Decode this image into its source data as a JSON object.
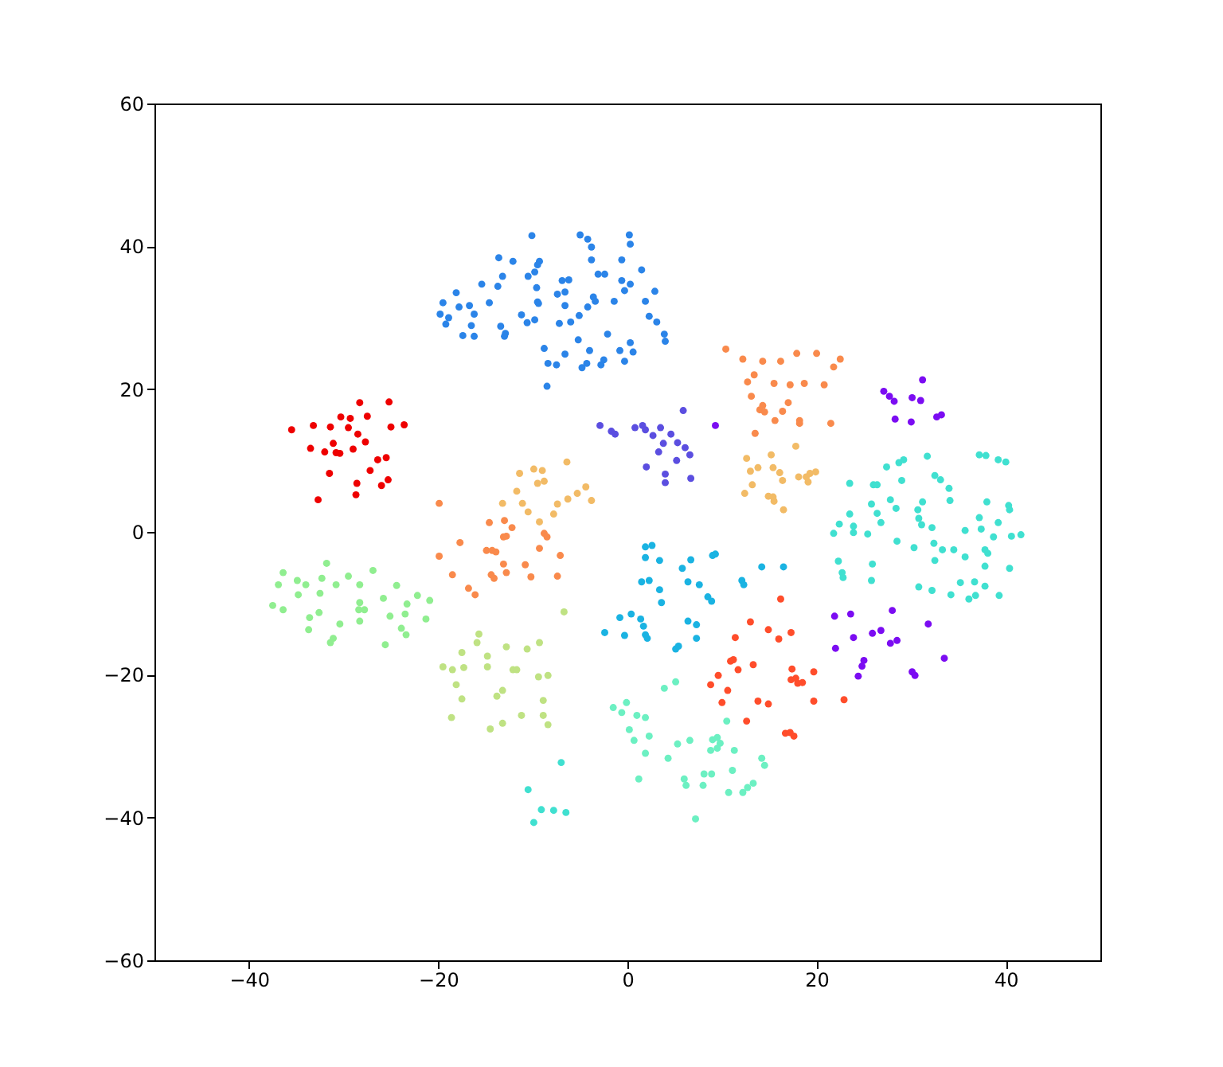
{
  "chart_data": {
    "type": "scatter",
    "marker": "circle",
    "xlim": [
      -50,
      50
    ],
    "ylim": [
      -60,
      60
    ],
    "xticks": [
      -40,
      -20,
      0,
      20,
      40
    ],
    "yticks": [
      -60,
      -40,
      -20,
      0,
      20,
      40,
      60
    ],
    "series": [
      {
        "color": "#ee0000",
        "x": [
          -28.3,
          -25.2,
          -30.3,
          -29.3,
          -27.5,
          -35.5,
          -33.2,
          -31.4,
          -29.5,
          -25.0,
          -23.6,
          -28.5,
          -31.1,
          -27.7,
          -33.5,
          -32.0,
          -30.8,
          -30.4,
          -29.0,
          -26.4,
          -25.5,
          -31.5,
          -27.2,
          -28.6,
          -26.0,
          -25.3,
          -28.7,
          -32.7
        ],
        "values": [
          18.1,
          18.2,
          16.1,
          15.9,
          16.2,
          14.3,
          14.9,
          14.7,
          14.6,
          14.7,
          15.0,
          13.7,
          12.4,
          12.6,
          11.7,
          11.2,
          11.1,
          11.0,
          11.6,
          10.1,
          10.4,
          8.2,
          8.6,
          6.8,
          6.5,
          7.3,
          5.2,
          4.5
        ]
      },
      {
        "color": "#2b84e8",
        "x": [
          -10.1,
          -13.6,
          -12.1,
          -13.2,
          -10.5,
          -15.4,
          -13.7,
          -18.1,
          -14.6,
          -19.5,
          -17.8,
          -16.7,
          -19.8,
          -18.9,
          -16.2,
          -11.2,
          -10.6,
          -19.2,
          -16.5,
          -13.4,
          -17.4,
          -16.2,
          -12.9,
          -13.0,
          -5.0,
          -4.2,
          -3.8,
          0.2,
          0.3,
          -9.3,
          -9.5,
          -3.8,
          -0.6,
          -9.8,
          -3.1,
          -2.4,
          1.5,
          -6.9,
          -6.2,
          -7.4,
          -6.6,
          -0.6,
          0.3,
          -9.6,
          -0.3,
          2.9,
          -3.6,
          -3.4,
          -9.5,
          -9.4,
          -6.6,
          -4.2,
          -1.4,
          1.9,
          -9.8,
          -7.2,
          -6.0,
          -5.1,
          2.3,
          3.1,
          -2.1,
          -5.2,
          3.9,
          4.0,
          0.3,
          -8.8,
          -6.6,
          -4.0,
          -0.8,
          0.6,
          -8.4,
          -7.5,
          -4.8,
          -4.3,
          -2.8,
          -2.5,
          -0.3,
          -8.5
        ],
        "values": [
          41.5,
          38.4,
          37.9,
          35.8,
          35.8,
          34.7,
          34.4,
          33.5,
          32.1,
          32.1,
          31.5,
          31.7,
          30.5,
          30.0,
          30.5,
          30.4,
          29.3,
          29.1,
          28.9,
          28.8,
          27.5,
          27.4,
          27.8,
          27.4,
          41.6,
          41.0,
          39.9,
          41.6,
          40.3,
          37.9,
          37.4,
          38.1,
          38.1,
          36.4,
          36.1,
          36.1,
          36.7,
          35.2,
          35.3,
          33.3,
          33.6,
          35.2,
          34.7,
          34.2,
          33.8,
          33.7,
          32.9,
          32.3,
          32.2,
          32.0,
          31.7,
          31.5,
          32.3,
          32.3,
          29.7,
          29.2,
          29.4,
          30.3,
          30.2,
          29.4,
          27.7,
          26.9,
          27.7,
          26.7,
          26.5,
          25.7,
          24.9,
          25.4,
          25.4,
          25.2,
          23.6,
          23.4,
          23.0,
          23.6,
          23.4,
          24.1,
          23.9,
          20.4
        ]
      },
      {
        "color": "#5b4ee0",
        "x": [
          5.9,
          -2.9,
          -1.7,
          -1.3,
          0.8,
          1.6,
          1.9,
          3.5,
          2.7,
          4.6,
          3.8,
          5.3,
          6.1,
          3.3,
          6.6,
          5.2,
          2.0,
          4.0,
          4.0,
          6.7
        ],
        "values": [
          17.0,
          14.9,
          14.1,
          13.7,
          14.6,
          14.9,
          14.3,
          14.6,
          13.5,
          13.7,
          12.4,
          12.5,
          11.8,
          11.2,
          10.8,
          10.0,
          9.1,
          8.1,
          6.9,
          7.5
        ]
      },
      {
        "color": "#7b0cf2",
        "x": [
          31.2,
          27.1,
          27.7,
          28.2,
          30.1,
          31.0,
          28.3,
          30.0,
          32.7,
          33.2,
          9.3,
          21.9,
          23.6,
          28.0,
          31.8,
          23.9,
          25.9,
          26.8,
          27.8,
          28.5,
          22.0,
          25.0,
          24.8,
          24.4,
          30.1,
          30.4,
          33.5
        ],
        "values": [
          21.3,
          19.7,
          19.0,
          18.3,
          18.8,
          18.4,
          15.8,
          15.4,
          16.1,
          16.4,
          14.9,
          -11.8,
          -11.5,
          -11.0,
          -12.9,
          -14.8,
          -14.2,
          -13.8,
          -15.6,
          -15.2,
          -16.3,
          -18.0,
          -18.8,
          -20.2,
          -19.6,
          -20.1,
          -17.7
        ]
      },
      {
        "color": "#f98a4c",
        "x": [
          10.4,
          12.2,
          14.3,
          13.4,
          12.7,
          13.1,
          14.3,
          14.0,
          14.5,
          13.5,
          16.2,
          17.9,
          20.0,
          21.8,
          22.5,
          15.5,
          17.2,
          18.7,
          20.8,
          17.0,
          16.4,
          15.6,
          18.2,
          18.2,
          21.5,
          -19.9,
          -14.6,
          -13.0,
          -12.2,
          -19.9,
          -17.7,
          -14.9,
          -14.3,
          -13.9,
          -13.1,
          -12.8,
          -10.8,
          -18.5,
          -14.4,
          -14.1,
          -13.1,
          -12.8,
          -10.2,
          -16.8,
          -16.1,
          -8.8,
          -8.5,
          -9.3,
          -7.1,
          -7.4
        ],
        "values": [
          25.6,
          24.2,
          23.9,
          22.0,
          21.0,
          19.0,
          17.7,
          17.1,
          16.8,
          13.8,
          23.9,
          25.0,
          25.0,
          23.1,
          24.2,
          20.8,
          20.6,
          20.8,
          20.6,
          18.1,
          16.9,
          15.6,
          15.6,
          15.2,
          15.2,
          4.0,
          1.3,
          1.6,
          0.6,
          -3.4,
          -1.5,
          -2.6,
          -2.6,
          -2.8,
          -0.7,
          -0.6,
          -4.6,
          -6.0,
          -6.0,
          -6.5,
          -4.5,
          -5.7,
          -6.3,
          -7.9,
          -8.8,
          -0.2,
          -0.7,
          -2.3,
          -3.3,
          -6.2
        ]
      },
      {
        "color": "#f2bb66",
        "x": [
          15.2,
          17.8,
          15.4,
          16.1,
          16.4,
          18.1,
          18.9,
          19.3,
          19.9,
          19.1,
          14.9,
          15.4,
          15.5,
          16.5,
          12.6,
          13.0,
          13.8,
          13.2,
          12.4,
          -11.4,
          -9.9,
          -9.0,
          -9.5,
          -8.8,
          -6.4,
          -4.4,
          -3.8,
          -5.3,
          -6.3,
          -7.4,
          -7.8,
          -11.1,
          -10.5,
          -9.3,
          -13.2,
          -11.7
        ],
        "values": [
          10.8,
          12.0,
          9.0,
          8.3,
          7.2,
          7.7,
          7.7,
          8.2,
          8.4,
          7.0,
          5.0,
          4.9,
          4.3,
          3.1,
          10.3,
          8.5,
          9.0,
          6.6,
          5.4,
          8.2,
          8.8,
          8.6,
          6.8,
          7.1,
          9.8,
          6.3,
          4.4,
          5.4,
          4.6,
          3.9,
          2.5,
          4.0,
          2.8,
          1.4,
          4.0,
          5.7
        ]
      },
      {
        "color": "#90ee90",
        "x": [
          -36.4,
          -31.8,
          -26.9,
          -36.9,
          -34.9,
          -34.0,
          -32.3,
          -30.8,
          -29.5,
          -28.3,
          -34.8,
          -32.5,
          -24.4,
          -37.5,
          -36.4,
          -28.3,
          -28.4,
          -27.8,
          -25.8,
          -23.3,
          -22.2,
          -20.9,
          -32.6,
          -33.6,
          -28.3,
          -25.1,
          -23.5,
          -21.3,
          -30.4,
          -33.7,
          -23.9,
          -23.4,
          -31.1,
          -31.4,
          -25.6
        ],
        "values": [
          -5.7,
          -4.4,
          -5.4,
          -7.4,
          -6.8,
          -7.4,
          -6.5,
          -7.4,
          -6.2,
          -7.4,
          -8.8,
          -8.6,
          -7.5,
          -10.3,
          -10.9,
          -9.9,
          -10.9,
          -10.9,
          -9.3,
          -10.1,
          -8.9,
          -9.6,
          -11.3,
          -12.0,
          -12.5,
          -11.8,
          -11.5,
          -12.2,
          -12.9,
          -13.7,
          -13.5,
          -14.4,
          -14.9,
          -15.5,
          -15.8
        ]
      },
      {
        "color": "#bfe283",
        "x": [
          -15.7,
          -15.9,
          -17.5,
          -19.5,
          -18.5,
          -17.3,
          -14.8,
          -14.8,
          -12.8,
          -10.6,
          -12.1,
          -11.7,
          -18.1,
          -17.5,
          -13.2,
          -13.8,
          -11.2,
          -18.6,
          -13.2,
          -14.5,
          -6.7,
          -9.3,
          -9.4,
          -8.4,
          -8.9,
          -8.9,
          -8.4
        ],
        "values": [
          -14.3,
          -15.5,
          -16.9,
          -18.9,
          -19.3,
          -19.0,
          -17.4,
          -18.9,
          -16.1,
          -16.4,
          -19.3,
          -19.3,
          -21.4,
          -23.4,
          -22.2,
          -23.0,
          -25.7,
          -26.0,
          -26.8,
          -27.6,
          -11.2,
          -15.5,
          -20.3,
          -20.1,
          -23.6,
          -25.7,
          -27.0
        ]
      },
      {
        "color": "#1ab3e2",
        "x": [
          1.9,
          2.6,
          1.9,
          3.4,
          5.8,
          6.7,
          9.0,
          9.3,
          1.5,
          2.3,
          6.4,
          3.4,
          7.6,
          3.6,
          8.5,
          8.9,
          12.1,
          12.3,
          14.2,
          -0.8,
          0.4,
          1.4,
          1.7,
          -2.4,
          -0.3,
          1.9,
          2.1,
          6.4,
          7.3,
          7.3,
          5.1,
          5.4,
          16.5
        ],
        "values": [
          -2.1,
          -1.9,
          -3.6,
          -4.0,
          -5.1,
          -3.9,
          -3.3,
          -3.1,
          -7.0,
          -6.8,
          -7.0,
          -8.1,
          -7.4,
          -9.9,
          -9.1,
          -9.7,
          -6.8,
          -7.4,
          -4.9,
          -12.0,
          -11.5,
          -12.2,
          -13.2,
          -14.1,
          -14.5,
          -14.4,
          -14.9,
          -12.5,
          -13.0,
          -14.9,
          -16.4,
          -16.0,
          -4.9
        ]
      },
      {
        "color": "#40e0d0",
        "x": [
          -7.0,
          -10.5,
          -9.1,
          -7.8,
          -6.5,
          -9.9,
          31.7,
          29.2,
          28.7,
          27.4,
          23.5,
          26.0,
          26.4,
          29.0,
          32.5,
          33.1,
          34.0,
          34.1,
          31.2,
          27.8,
          28.4,
          25.8,
          26.4,
          23.5,
          21.8,
          22.4,
          23.9,
          23.9,
          25.4,
          26.8,
          30.7,
          30.8,
          31.1,
          32.2,
          35.7,
          37.2,
          37.9,
          39.2,
          40.0,
          38.0,
          37.2,
          37.4,
          39.2,
          40.3,
          40.4,
          38.7,
          40.6,
          41.6,
          28.5,
          30.3,
          32.4,
          33.3,
          34.5,
          35.7,
          37.8,
          38.1,
          22.3,
          25.9,
          22.7,
          22.8,
          25.8,
          32.5,
          37.8,
          40.4,
          30.8,
          32.2,
          34.2,
          35.2,
          36.7,
          37.8,
          36.1,
          36.8,
          39.3
        ],
        "values": [
          -32.3,
          -36.1,
          -38.9,
          -39.0,
          -39.3,
          -40.7,
          10.6,
          10.1,
          9.7,
          9.1,
          6.8,
          6.6,
          6.6,
          7.2,
          7.9,
          7.3,
          6.1,
          4.4,
          4.2,
          4.5,
          3.3,
          3.9,
          2.6,
          2.5,
          -0.2,
          1.1,
          0.8,
          -0.1,
          -0.3,
          1.3,
          3.1,
          1.9,
          1.0,
          0.6,
          0.2,
          10.8,
          10.7,
          10.1,
          9.8,
          4.2,
          2.0,
          0.4,
          1.3,
          3.7,
          3.1,
          -0.7,
          -0.6,
          -0.4,
          -1.3,
          -2.2,
          -1.6,
          -2.5,
          -2.5,
          -3.5,
          -2.5,
          -3.0,
          -4.1,
          -4.5,
          -5.7,
          -6.4,
          -6.8,
          -4.0,
          -4.8,
          -5.1,
          -7.7,
          -8.2,
          -8.8,
          -7.1,
          -7.0,
          -7.6,
          -9.4,
          -8.9,
          -8.9
        ]
      },
      {
        "color": "#6cf0c2",
        "x": [
          3.9,
          5.1,
          -1.5,
          -0.6,
          -0.1,
          1.0,
          1.9,
          0.2,
          0.7,
          2.3,
          1.9,
          4.3,
          5.3,
          6.6,
          9.0,
          9.5,
          9.8,
          8.8,
          9.5,
          11.3,
          10.5,
          14.2,
          14.5,
          11.1,
          8.1,
          8.9,
          8.0,
          6.0,
          6.2,
          1.2,
          10.7,
          12.2,
          12.7,
          13.3,
          7.2
        ],
        "values": [
          -21.9,
          -21.0,
          -24.6,
          -25.3,
          -23.9,
          -25.7,
          -26.0,
          -27.7,
          -29.2,
          -28.6,
          -31.0,
          -31.7,
          -29.7,
          -29.2,
          -29.1,
          -28.8,
          -29.6,
          -30.6,
          -30.3,
          -30.6,
          -26.5,
          -31.7,
          -32.7,
          -33.4,
          -33.9,
          -33.9,
          -35.5,
          -34.6,
          -35.5,
          -34.6,
          -36.5,
          -36.5,
          -35.8,
          -35.2,
          -40.2
        ]
      },
      {
        "color": "#ff4d2b",
        "x": [
          13.0,
          14.9,
          16.0,
          11.4,
          11.2,
          10.9,
          11.7,
          13.3,
          9.6,
          8.8,
          10.6,
          10.0,
          13.8,
          14.9,
          12.6,
          16.2,
          17.3,
          17.4,
          19.7,
          17.3,
          17.8,
          18.0,
          18.5,
          19.7,
          22.9,
          16.7,
          17.2,
          17.6
        ],
        "values": [
          -12.6,
          -13.7,
          -15.0,
          -14.8,
          -17.9,
          -18.1,
          -19.3,
          -18.6,
          -20.1,
          -21.4,
          -22.2,
          -23.9,
          -23.7,
          -24.1,
          -26.5,
          -9.4,
          -14.1,
          -19.2,
          -19.6,
          -20.7,
          -20.5,
          -21.2,
          -21.1,
          -23.7,
          -23.5,
          -28.2,
          -28.1,
          -28.6
        ]
      }
    ]
  }
}
